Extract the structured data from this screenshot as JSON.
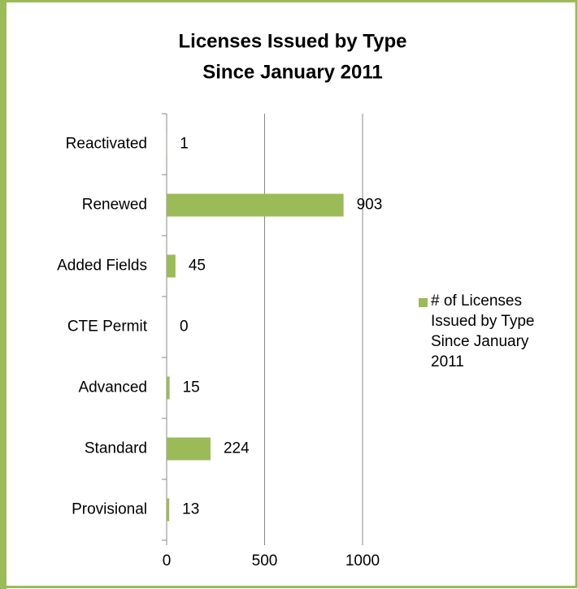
{
  "chart_data": {
    "type": "hbar",
    "title": [
      "Licenses Issued by Type",
      "Since January 2011"
    ],
    "categories": [
      "Reactivated",
      "Renewed",
      "Added Fields",
      "CTE Permit",
      "Advanced",
      "Standard",
      "Provisional"
    ],
    "series": [
      {
        "name": "# of Licenses Issued by Type Since January 2011",
        "color": "#9bbb59",
        "values": [
          1,
          903,
          45,
          0,
          15,
          224,
          13
        ]
      }
    ],
    "xlim": [
      0,
      1000
    ],
    "xticks": [
      0,
      500,
      1000
    ],
    "grid": true,
    "legend": "right"
  }
}
